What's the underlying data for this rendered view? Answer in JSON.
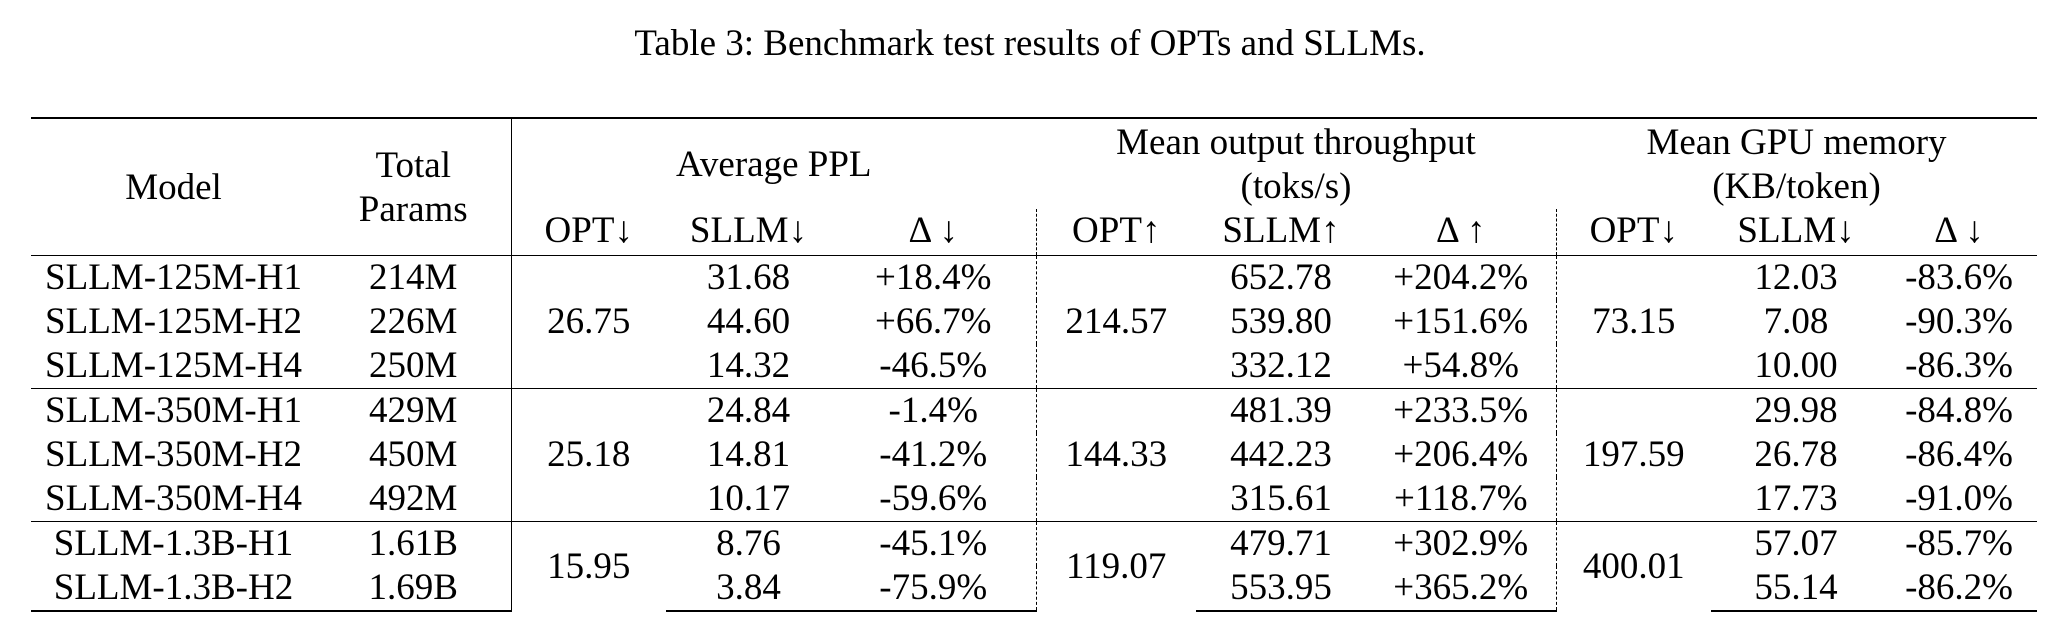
{
  "caption": "Table 3: Benchmark test results of OPTs and SLLMs.",
  "header": {
    "model": "Model",
    "total_params_line1": "Total",
    "total_params_line2": "Params",
    "ppl_group": "Average PPL",
    "throughput_group_line1": "Mean output throughput",
    "throughput_group_line2": "(toks/s)",
    "memory_group_line1": "Mean GPU memory",
    "memory_group_line2": "(KB/token)",
    "ppl_cols": [
      "OPT↓",
      "SLLM↓",
      "Δ ↓"
    ],
    "throughput_cols": [
      "OPT↑",
      "SLLM↑",
      "Δ ↑"
    ],
    "memory_cols": [
      "OPT↓",
      "SLLM↓",
      "Δ ↓"
    ]
  },
  "groups": [
    {
      "opt_ppl": "26.75",
      "opt_throughput": "214.57",
      "opt_memory": "73.15",
      "rows": [
        {
          "model": "SLLM-125M-H1",
          "params": "214M",
          "sllm_ppl": "31.68",
          "d_ppl": "+18.4%",
          "sllm_tp": "652.78",
          "d_tp": "+204.2%",
          "sllm_mem": "12.03",
          "d_mem": "-83.6%"
        },
        {
          "model": "SLLM-125M-H2",
          "params": "226M",
          "sllm_ppl": "44.60",
          "d_ppl": "+66.7%",
          "sllm_tp": "539.80",
          "d_tp": "+151.6%",
          "sllm_mem": "7.08",
          "d_mem": "-90.3%"
        },
        {
          "model": "SLLM-125M-H4",
          "params": "250M",
          "sllm_ppl": "14.32",
          "d_ppl": "-46.5%",
          "sllm_tp": "332.12",
          "d_tp": "+54.8%",
          "sllm_mem": "10.00",
          "d_mem": "-86.3%"
        }
      ]
    },
    {
      "opt_ppl": "25.18",
      "opt_throughput": "144.33",
      "opt_memory": "197.59",
      "rows": [
        {
          "model": "SLLM-350M-H1",
          "params": "429M",
          "sllm_ppl": "24.84",
          "d_ppl": "-1.4%",
          "sllm_tp": "481.39",
          "d_tp": "+233.5%",
          "sllm_mem": "29.98",
          "d_mem": "-84.8%"
        },
        {
          "model": "SLLM-350M-H2",
          "params": "450M",
          "sllm_ppl": "14.81",
          "d_ppl": "-41.2%",
          "sllm_tp": "442.23",
          "d_tp": "+206.4%",
          "sllm_mem": "26.78",
          "d_mem": "-86.4%"
        },
        {
          "model": "SLLM-350M-H4",
          "params": "492M",
          "sllm_ppl": "10.17",
          "d_ppl": "-59.6%",
          "sllm_tp": "315.61",
          "d_tp": "+118.7%",
          "sllm_mem": "17.73",
          "d_mem": "-91.0%"
        }
      ]
    },
    {
      "opt_ppl": "15.95",
      "opt_throughput": "119.07",
      "opt_memory": "400.01",
      "rows": [
        {
          "model": "SLLM-1.3B-H1",
          "params": "1.61B",
          "sllm_ppl": "8.76",
          "d_ppl": "-45.1%",
          "sllm_tp": "479.71",
          "d_tp": "+302.9%",
          "sllm_mem": "57.07",
          "d_mem": "-85.7%"
        },
        {
          "model": "SLLM-1.3B-H2",
          "params": "1.69B",
          "sllm_ppl": "3.84",
          "d_ppl": "-75.9%",
          "sllm_tp": "553.95",
          "d_tp": "+365.2%",
          "sllm_mem": "55.14",
          "d_mem": "-86.2%"
        }
      ]
    }
  ]
}
